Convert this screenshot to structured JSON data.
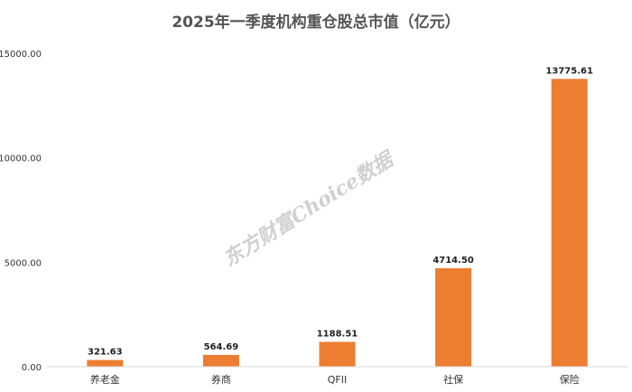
{
  "chart_data": {
    "type": "bar",
    "title": "2025年一季度机构重仓股总市值（亿元）",
    "categories": [
      "养老金",
      "券商",
      "QFII",
      "社保",
      "保险"
    ],
    "values": [
      321.63,
      564.69,
      1188.51,
      4714.5,
      13775.61
    ],
    "data_labels": [
      "321.63",
      "564.69",
      "1188.51",
      "4714.50",
      "13775.61"
    ],
    "y_ticks": [
      {
        "value": 0,
        "label": "0.00"
      },
      {
        "value": 5000,
        "label": "5000.00"
      },
      {
        "value": 10000,
        "label": "10000.00"
      },
      {
        "value": 15000,
        "label": "15000.00"
      }
    ],
    "ylim": [
      0,
      15000
    ],
    "xlabel": "",
    "ylabel": "",
    "grid": false,
    "legend": "none",
    "bar_color": "#ED7D31",
    "axis_color": "#d9d9d9",
    "watermark": "东方财富Choice数据"
  }
}
